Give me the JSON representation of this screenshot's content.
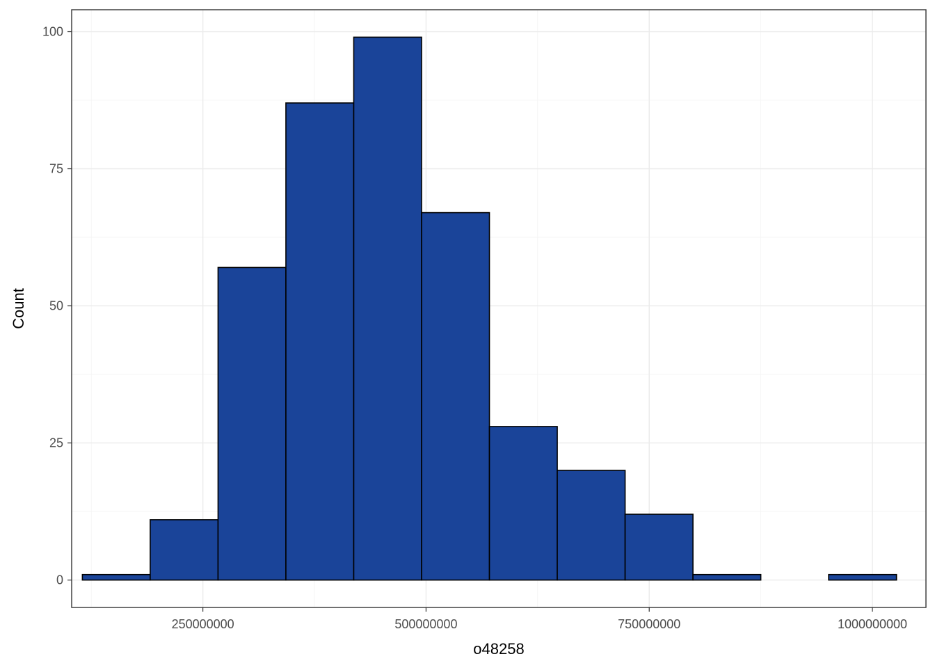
{
  "chart_data": {
    "type": "bar",
    "subtype": "histogram",
    "title": "",
    "xlabel": "o48258",
    "ylabel": "Count",
    "xlim": [
      103000000,
      1060000000
    ],
    "ylim": [
      -5,
      104
    ],
    "x_ticks": [
      250000000,
      500000000,
      750000000,
      1000000000
    ],
    "x_tick_labels": [
      "250000000",
      "500000000",
      "750000000",
      "1000000000"
    ],
    "y_ticks": [
      0,
      25,
      50,
      75,
      100
    ],
    "y_tick_labels": [
      "0",
      "25",
      "50",
      "75",
      "100"
    ],
    "grid": true,
    "fill_color": "#1a4499",
    "edge_color": "#000000",
    "bins": [
      {
        "x0": 115000000,
        "x1": 191000000,
        "count": 1
      },
      {
        "x0": 191000000,
        "x1": 267000000,
        "count": 11
      },
      {
        "x0": 267000000,
        "x1": 343000000,
        "count": 57
      },
      {
        "x0": 343000000,
        "x1": 419000000,
        "count": 87
      },
      {
        "x0": 419000000,
        "x1": 495000000,
        "count": 99
      },
      {
        "x0": 495000000,
        "x1": 571000000,
        "count": 67
      },
      {
        "x0": 571000000,
        "x1": 647000000,
        "count": 28
      },
      {
        "x0": 647000000,
        "x1": 723000000,
        "count": 20
      },
      {
        "x0": 723000000,
        "x1": 799000000,
        "count": 12
      },
      {
        "x0": 799000000,
        "x1": 875000000,
        "count": 1
      },
      {
        "x0": 875000000,
        "x1": 951000000,
        "count": 0
      },
      {
        "x0": 951000000,
        "x1": 1027000000,
        "count": 1
      }
    ]
  }
}
